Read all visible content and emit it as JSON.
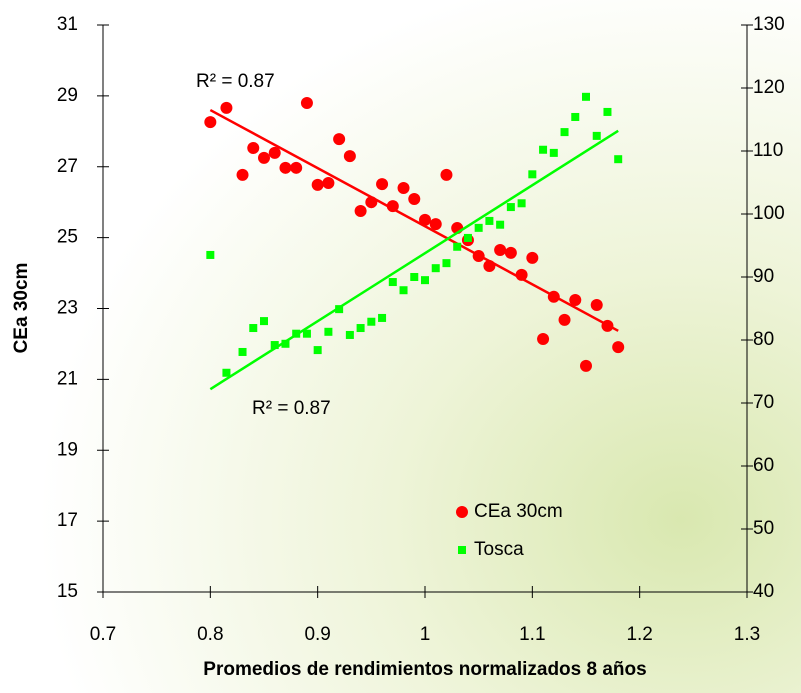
{
  "chart_data": {
    "type": "scatter",
    "x_label": "Promedios de rendimientos normalizados 8 años",
    "y_label": "CEa 30cm",
    "xlim": [
      0.7,
      1.3
    ],
    "xticks": [
      0.7,
      0.8,
      0.9,
      1,
      1.1,
      1.2,
      1.3
    ],
    "ylim": [
      15,
      31
    ],
    "yticks": [
      15,
      17,
      19,
      21,
      23,
      25,
      27,
      29,
      31
    ],
    "y2lim": [
      40,
      130
    ],
    "y2ticks": [
      40,
      50,
      60,
      70,
      80,
      90,
      100,
      110,
      120,
      130
    ],
    "legend": "bottom-right",
    "annotations": [
      "R² = 0.87",
      "R² = 0.87"
    ],
    "series": [
      {
        "name": "CEa 30cm",
        "color": "#ff0000",
        "marker": "circle",
        "x": [
          0.8,
          0.815,
          0.83,
          0.84,
          0.85,
          0.86,
          0.87,
          0.88,
          0.89,
          0.9,
          0.91,
          0.92,
          0.93,
          0.94,
          0.95,
          0.96,
          0.97,
          0.98,
          0.99,
          1,
          1.01,
          1.02,
          1.03,
          1.04,
          1.05,
          1.06,
          1.07,
          1.08,
          1.09,
          1.1,
          1.11,
          1.12,
          1.13,
          1.14,
          1.15,
          1.16,
          1.17,
          1.18
        ],
        "values": [
          28.26,
          28.66,
          26.77,
          27.53,
          27.25,
          27.39,
          26.97,
          26.97,
          28.8,
          26.49,
          26.54,
          27.78,
          27.3,
          25.75,
          26.0,
          26.51,
          25.89,
          26.4,
          26.09,
          25.5,
          25.38,
          26.77,
          25.27,
          24.93,
          24.48,
          24.2,
          24.65,
          24.57,
          23.95,
          24.43,
          22.14,
          23.33,
          22.68,
          23.24,
          21.38,
          23.1,
          22.51,
          21.91
        ],
        "trendline": {
          "x": [
            0.8,
            1.18
          ],
          "values": [
            28.6,
            22.37
          ]
        }
      },
      {
        "name": "Tosca",
        "color": "#00ff00",
        "marker": "square",
        "axis": "y2",
        "x": [
          0.8,
          0.815,
          0.83,
          0.84,
          0.85,
          0.86,
          0.87,
          0.88,
          0.89,
          0.9,
          0.91,
          0.92,
          0.93,
          0.94,
          0.95,
          0.96,
          0.97,
          0.98,
          0.99,
          1,
          1.01,
          1.02,
          1.03,
          1.04,
          1.05,
          1.06,
          1.07,
          1.08,
          1.09,
          1.1,
          1.11,
          1.12,
          1.13,
          1.14,
          1.15,
          1.16,
          1.17,
          1.18
        ],
        "values": [
          93.5,
          74.8,
          78.1,
          81.9,
          83.0,
          79.2,
          79.4,
          81.0,
          81.0,
          78.4,
          81.3,
          84.9,
          80.8,
          81.9,
          82.9,
          83.5,
          89.2,
          87.9,
          90.0,
          89.5,
          91.4,
          92.2,
          94.8,
          96.2,
          97.8,
          98.9,
          98.3,
          101.1,
          101.7,
          106.3,
          110.2,
          109.7,
          113.0,
          115.4,
          118.6,
          112.4,
          116.2,
          108.7
        ],
        "trendline": {
          "x": [
            0.8,
            1.18
          ],
          "values": [
            72.2,
            113.2
          ]
        }
      }
    ]
  }
}
